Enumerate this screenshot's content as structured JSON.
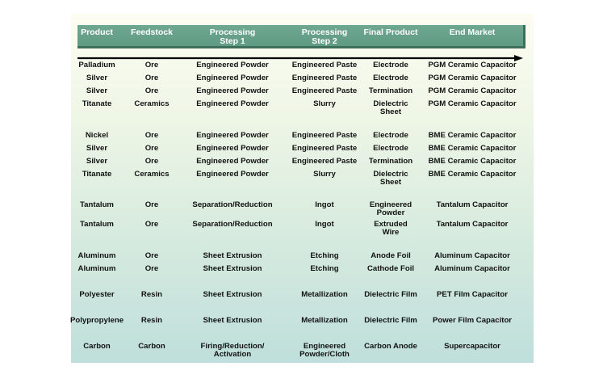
{
  "headers": [
    "Product",
    "Feedstock",
    "Processing\nStep 1",
    "Processing\nStep 2",
    "Final Product",
    "End Market"
  ],
  "rows": [
    [
      "Palladium",
      "Ore",
      "Engineered Powder",
      "Engineered Paste",
      "Electrode",
      "PGM Ceramic Capacitor"
    ],
    [
      "Silver",
      "Ore",
      "Engineered Powder",
      "Engineered Paste",
      "Electrode",
      "PGM Ceramic Capacitor"
    ],
    [
      "Silver",
      "Ore",
      "Engineered Powder",
      "Engineered Paste",
      "Termination",
      "PGM Ceramic Capacitor"
    ],
    [
      "Titanate",
      "Ceramics",
      "Engineered Powder",
      "Slurry",
      "Dielectric\nSheet",
      "PGM Ceramic Capacitor"
    ],
    [
      "Nickel",
      "Ore",
      "Engineered Powder",
      "Engineered Paste",
      "Electrode",
      "BME Ceramic Capacitor"
    ],
    [
      "Silver",
      "Ore",
      "Engineered Powder",
      "Engineered Paste",
      "Electrode",
      "BME Ceramic Capacitor"
    ],
    [
      "Silver",
      "Ore",
      "Engineered Powder",
      "Engineered Paste",
      "Termination",
      "BME Ceramic Capacitor"
    ],
    [
      "Titanate",
      "Ceramics",
      "Engineered Powder",
      "Slurry",
      "Dielectric\nSheet",
      "BME Ceramic Capacitor"
    ],
    [
      "Tantalum",
      "Ore",
      "Separation/Reduction",
      "Ingot",
      "Engineered\nPowder",
      "Tantalum Capacitor"
    ],
    [
      "Tantalum",
      "Ore",
      "Separation/Reduction",
      "Ingot",
      "Extruded\nWire",
      "Tantalum Capacitor"
    ],
    [
      "Aluminum",
      "Ore",
      "Sheet Extrusion",
      "Etching",
      "Anode Foil",
      "Aluminum Capacitor"
    ],
    [
      "Aluminum",
      "Ore",
      "Sheet Extrusion",
      "Etching",
      "Cathode Foil",
      "Aluminum Capacitor"
    ],
    [
      "Polyester",
      "Resin",
      "Sheet Extrusion",
      "Metallization",
      "Dielectric Film",
      "PET Film Capacitor"
    ],
    [
      "Polypropylene",
      "Resin",
      "Sheet Extrusion",
      "Metallization",
      "Dielectric Film",
      "Power Film Capacitor"
    ],
    [
      "Carbon",
      "Carbon",
      "Firing/Reduction/\nActivation",
      "Engineered\nPowder/Cloth",
      "Carbon Anode",
      "Supercapacitor"
    ]
  ]
}
